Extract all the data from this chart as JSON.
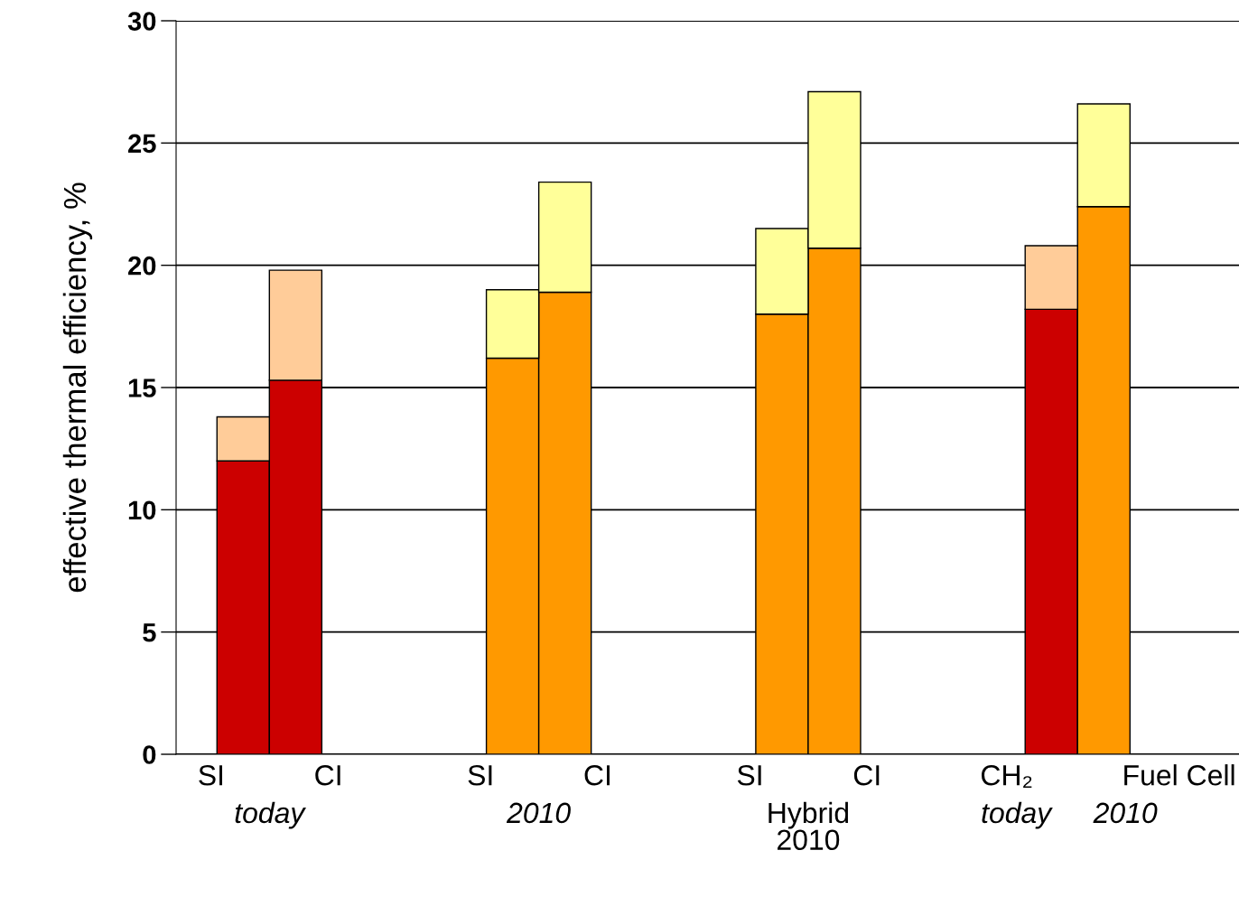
{
  "chart_data": {
    "type": "bar",
    "stacked": true,
    "ylabel": "effective thermal efficiency, %",
    "categories": [
      "SI",
      "CI",
      "SI",
      "CI",
      "SI",
      "CI",
      "CH₂",
      "Fuel Cell"
    ],
    "series": [
      {
        "colors": [
          "#cc0000",
          "#cc0000",
          "#ff9900",
          "#ff9900",
          "#ff9900",
          "#ff9900",
          "#cc0000",
          "#ff9900"
        ],
        "values": [
          12.0,
          15.3,
          16.2,
          18.9,
          18.0,
          20.7,
          18.2,
          22.4
        ]
      },
      {
        "colors": [
          "#ffcc99",
          "#ffcc99",
          "#ffff99",
          "#ffff99",
          "#ffff99",
          "#ffff99",
          "#ffcc99",
          "#ffff99"
        ],
        "values": [
          1.8,
          4.5,
          2.8,
          4.5,
          3.5,
          6.4,
          2.6,
          4.2
        ]
      }
    ],
    "annotations": [
      "today",
      "2010",
      "Hybrid\n2010",
      "today",
      "2010"
    ],
    "ylim": [
      0,
      30
    ],
    "yticks": [
      0,
      5,
      10,
      15,
      20,
      25,
      30
    ],
    "grid": "y"
  }
}
